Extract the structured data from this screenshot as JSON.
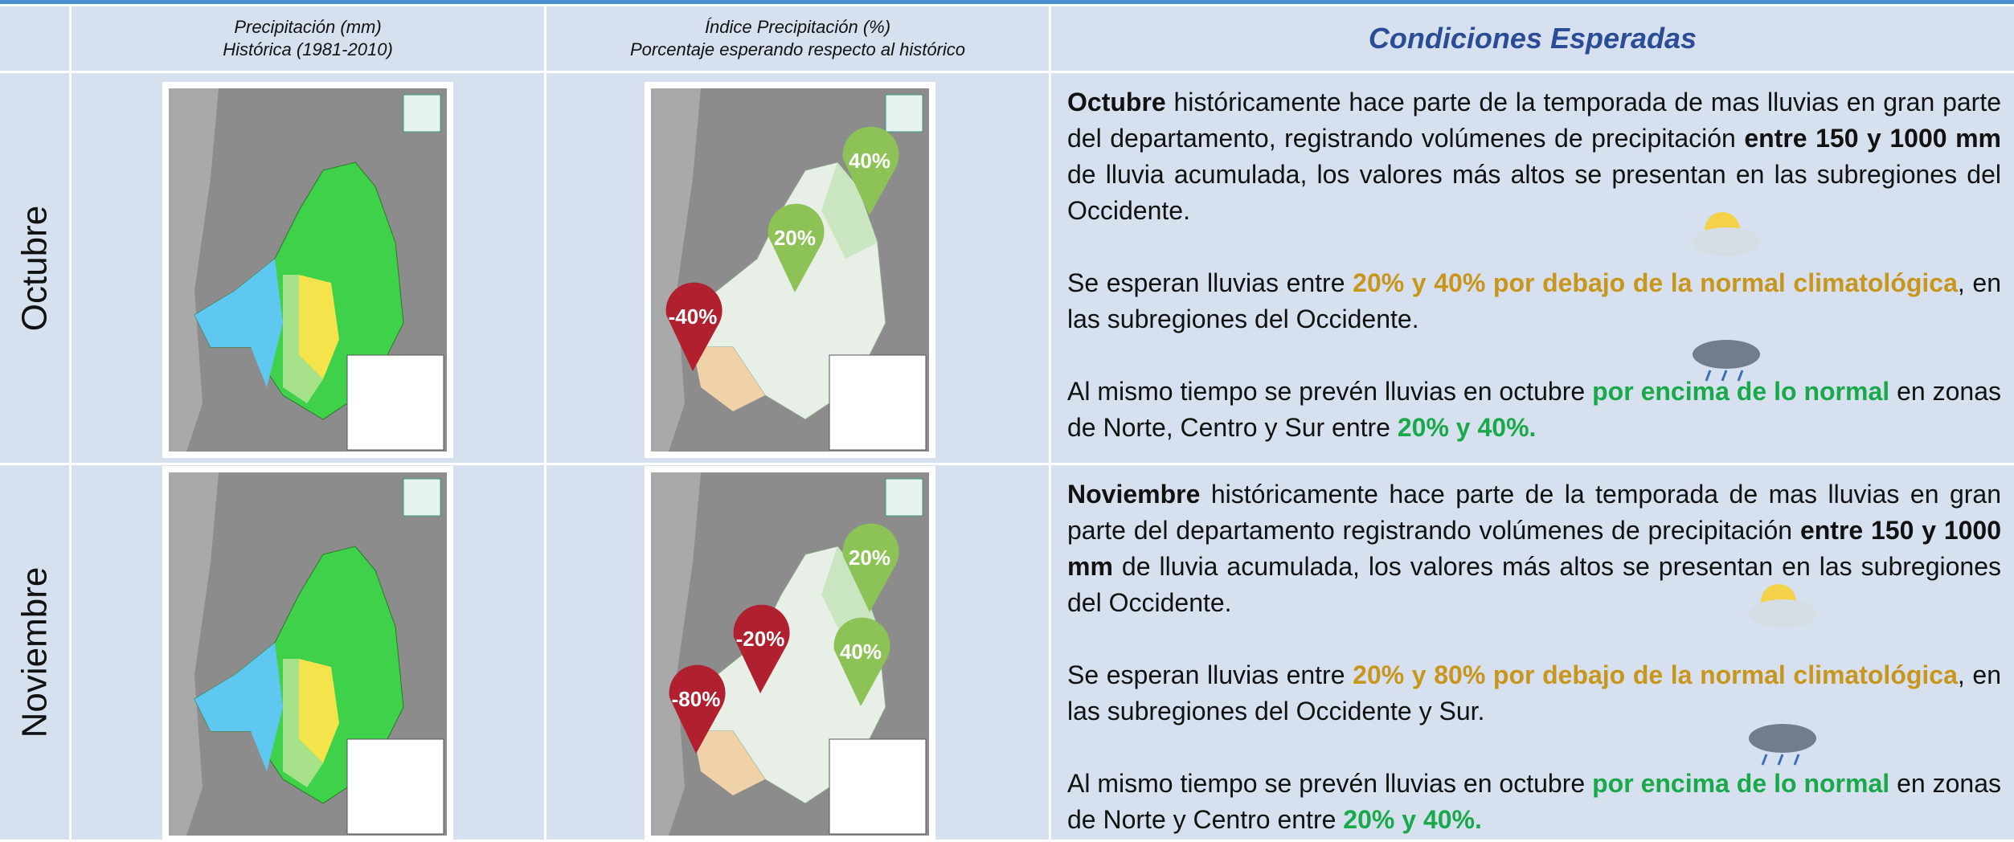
{
  "header": {
    "col_historic": [
      "Precipitación (mm)",
      "Histórica (1981-2010)"
    ],
    "col_index": [
      "Índice Precipitación (%)",
      "Porcentaje esperando respecto al histórico"
    ],
    "col_conditions": "Condiciones Esperadas"
  },
  "rows": [
    {
      "month": "Octubre",
      "markers": [
        {
          "label": "-40%",
          "color": "#b0202e"
        },
        {
          "label": "20%",
          "color": "#8dc257"
        },
        {
          "label": "40%",
          "color": "#8dc257"
        }
      ],
      "paragraphs": [
        [
          {
            "text": "Octubre",
            "style": "bold"
          },
          {
            "text": " históricamente hace parte de la temporada de mas lluvias en gran parte del departamento, registrando volúmenes de precipitación "
          },
          {
            "text": "entre 150 y 1000 mm",
            "style": "bold"
          },
          {
            "text": " de lluvia acumulada, los valores más altos se presentan en las subregiones del Occidente."
          }
        ],
        [
          {
            "text": "Se esperan lluvias entre "
          },
          {
            "text": "20% y 40% por debajo de la normal climatológica",
            "style": "orange"
          },
          {
            "text": ", en las subregiones del Occidente."
          }
        ],
        [
          {
            "text": "Al mismo tiempo se prevén lluvias en octubre "
          },
          {
            "text": "por encima de lo normal",
            "style": "green"
          },
          {
            "text": " en zonas de Norte, Centro y Sur entre "
          },
          {
            "text": "20% y 40%.",
            "style": "green"
          }
        ]
      ]
    },
    {
      "month": "Noviembre",
      "markers": [
        {
          "label": "-80%",
          "color": "#b0202e"
        },
        {
          "label": "-20%",
          "color": "#b0202e"
        },
        {
          "label": "40%",
          "color": "#8dc257"
        },
        {
          "label": "20%",
          "color": "#8dc257"
        }
      ],
      "paragraphs": [
        [
          {
            "text": "Noviembre",
            "style": "bold"
          },
          {
            "text": " históricamente hace parte de la temporada de mas lluvias en gran parte del departamento registrando volúmenes de precipitación "
          },
          {
            "text": "entre 150 y 1000 mm",
            "style": "bold"
          },
          {
            "text": " de lluvia acumulada, los valores más altos se presentan en las subregiones del Occidente."
          }
        ],
        [
          {
            "text": "Se esperan lluvias entre "
          },
          {
            "text": "20% y 80% por debajo de la normal climatológica",
            "style": "orange"
          },
          {
            "text": ", en las subregiones del Occidente y Sur."
          }
        ],
        [
          {
            "text": "Al mismo tiempo se prevén lluvias en octubre "
          },
          {
            "text": "por encima de lo normal",
            "style": "green"
          },
          {
            "text": " en zonas de Norte y Centro entre "
          },
          {
            "text": "20% y 40%.",
            "style": "green"
          }
        ]
      ]
    }
  ]
}
